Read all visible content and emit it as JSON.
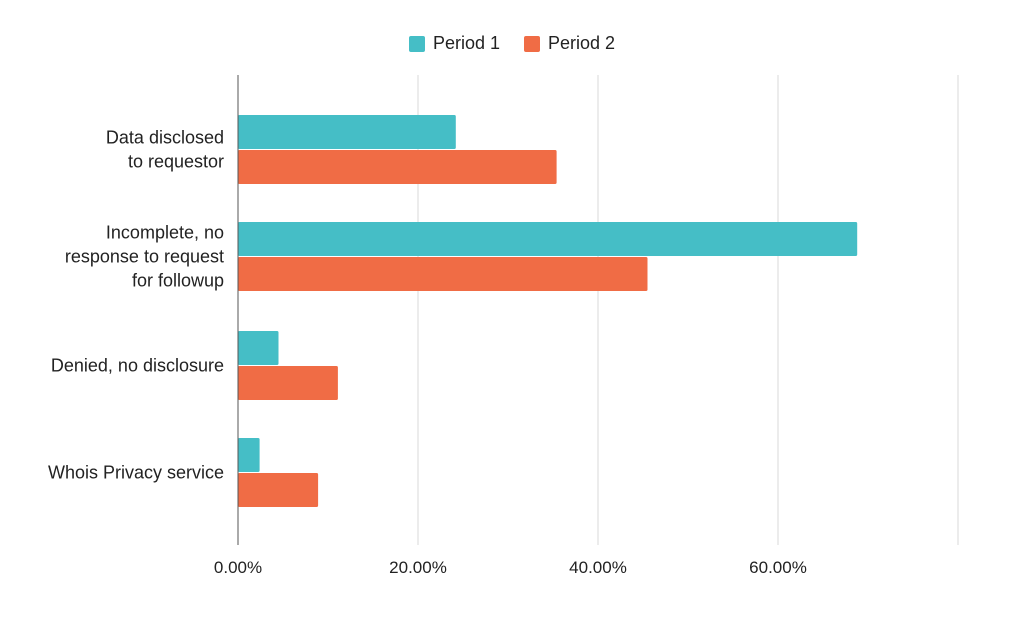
{
  "chart_data": {
    "type": "bar",
    "orientation": "horizontal",
    "categories": [
      "Data disclosed to requestor",
      "Incomplete, no response to request for followup",
      "Denied, no disclosure",
      "Whois Privacy service"
    ],
    "category_lines": [
      [
        "Data disclosed",
        "to requestor"
      ],
      [
        "Incomplete, no",
        "response to request",
        "for followup"
      ],
      [
        "Denied, no disclosure"
      ],
      [
        "Whois Privacy service"
      ]
    ],
    "series": [
      {
        "name": "Period 1",
        "color": "#45bec6",
        "values": [
          24.2,
          68.8,
          4.5,
          2.4
        ]
      },
      {
        "name": "Period 2",
        "color": "#f06c45",
        "values": [
          35.4,
          45.5,
          11.1,
          8.9
        ]
      }
    ],
    "xlim": [
      0,
      80
    ],
    "xticks": [
      0,
      20,
      40,
      60
    ],
    "xtick_labels": [
      "0.00%",
      "20.00%",
      "40.00%",
      "60.00%"
    ],
    "grid": "vertical",
    "legend": "top-center",
    "title": "",
    "xlabel": "",
    "ylabel": ""
  }
}
